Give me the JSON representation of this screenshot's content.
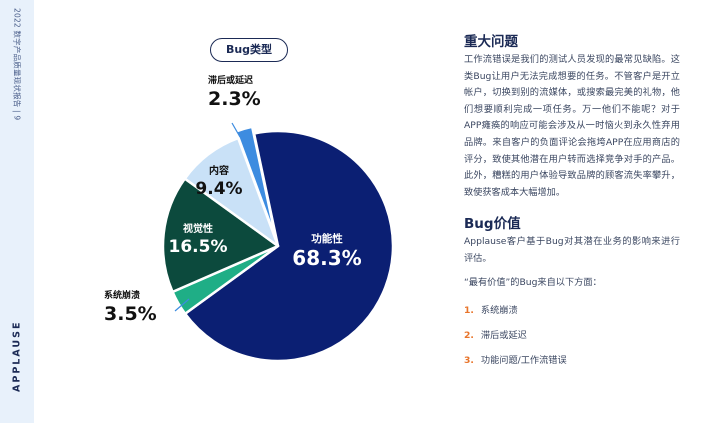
{
  "side_caption": "2022 数字产品质量现状报告 | 9",
  "logo": "APPLAUSE",
  "chart_data": {
    "type": "pie",
    "title": "Bug类型",
    "slices": [
      {
        "label": "功能性",
        "value": 68.3,
        "display": "68.3%",
        "color": "#0b1f73"
      },
      {
        "label": "系统崩溃",
        "value": 3.5,
        "display": "3.5%",
        "color": "#1fae86"
      },
      {
        "label": "视觉性",
        "value": 16.5,
        "display": "16.5%",
        "color": "#0c4a3d"
      },
      {
        "label": "内容",
        "value": 9.4,
        "display": "9.4%",
        "color": "#c9e1f7"
      },
      {
        "label": "滞后或延迟",
        "value": 2.3,
        "display": "2.3%",
        "color": "#3d8ce0"
      }
    ]
  },
  "right": {
    "heading1": "重大问题",
    "para1": "工作流错误是我们的测试人员发现的最常见缺陷。这类Bug让用户无法完成想要的任务。不管客户是开立帐户，切换到别的流媒体，或搜索最完美的礼物，他们想要顺利完成一项任务。万一他们不能呢？对于APP瘫痪的响应可能会涉及从一时恼火到永久性弃用品牌。来自客户的负面评论会拖垮APP在应用商店的评分，致使其他潜在用户转而选择竞争对手的产品。此外，糟糕的用户体验导致品牌的顾客流失率攀升，致使获客成本大幅增加。",
    "heading2": "Bug价值",
    "para2": "Applause客户基于Bug对其潜在业务的影响来进行评估。",
    "para3": "“最有价值”的Bug来自以下方面：",
    "list": [
      {
        "num": "1.",
        "text": "系统崩溃"
      },
      {
        "num": "2.",
        "text": "滞后或延迟"
      },
      {
        "num": "3.",
        "text": "功能问题/工作流错误"
      }
    ]
  }
}
